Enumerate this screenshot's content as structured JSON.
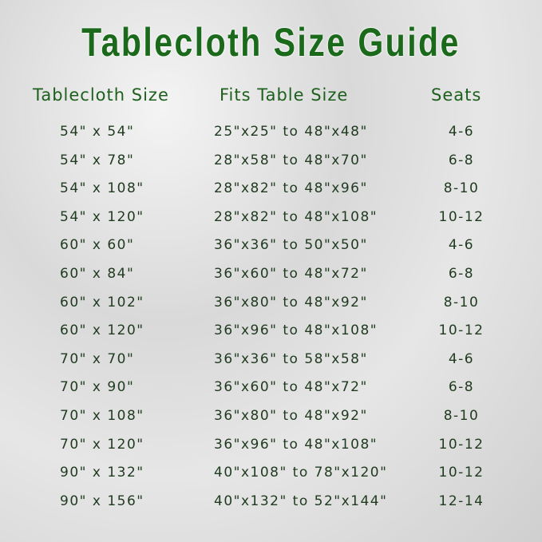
{
  "title": "Tablecloth Size Guide",
  "headers": [
    "Tablecloth Size",
    "Fits Table Size",
    "Seats"
  ],
  "colors": {
    "title": "#1b6a1b",
    "header": "#1d5f1d",
    "text": "#1f3a1f"
  },
  "rows": [
    {
      "size": "54\" x 54\"",
      "fits": "25\"x25\" to 48\"x48\"",
      "seats": "4-6"
    },
    {
      "size": "54\" x 78\"",
      "fits": "28\"x58\" to 48\"x70\"",
      "seats": "6-8"
    },
    {
      "size": "54\" x 108\"",
      "fits": "28\"x82\" to 48\"x96\"",
      "seats": "8-10"
    },
    {
      "size": "54\" x 120\"",
      "fits": "28\"x82\" to 48\"x108\"",
      "seats": "10-12"
    },
    {
      "size": "60\" x 60\"",
      "fits": "36\"x36\" to 50\"x50\"",
      "seats": "4-6"
    },
    {
      "size": "60\" x 84\"",
      "fits": "36\"x60\" to 48\"x72\"",
      "seats": "6-8"
    },
    {
      "size": "60\" x 102\"",
      "fits": "36\"x80\" to 48\"x92\"",
      "seats": "8-10"
    },
    {
      "size": "60\" x 120\"",
      "fits": "36\"x96\" to 48\"x108\"",
      "seats": "10-12"
    },
    {
      "size": "70\" x 70\"",
      "fits": "36\"x36\" to 58\"x58\"",
      "seats": "4-6"
    },
    {
      "size": "70\" x 90\"",
      "fits": "36\"x60\" to 48\"x72\"",
      "seats": "6-8"
    },
    {
      "size": "70\" x 108\"",
      "fits": "36\"x80\" to 48\"x92\"",
      "seats": "8-10"
    },
    {
      "size": "70\" x 120\"",
      "fits": "36\"x96\" to 48\"x108\"",
      "seats": "10-12"
    },
    {
      "size": "90\" x 132\"",
      "fits": "40\"x108\" to 78\"x120\"",
      "seats": "10-12"
    },
    {
      "size": "90\" x 156\"",
      "fits": "40\"x132\" to 52\"x144\"",
      "seats": "12-14"
    }
  ]
}
